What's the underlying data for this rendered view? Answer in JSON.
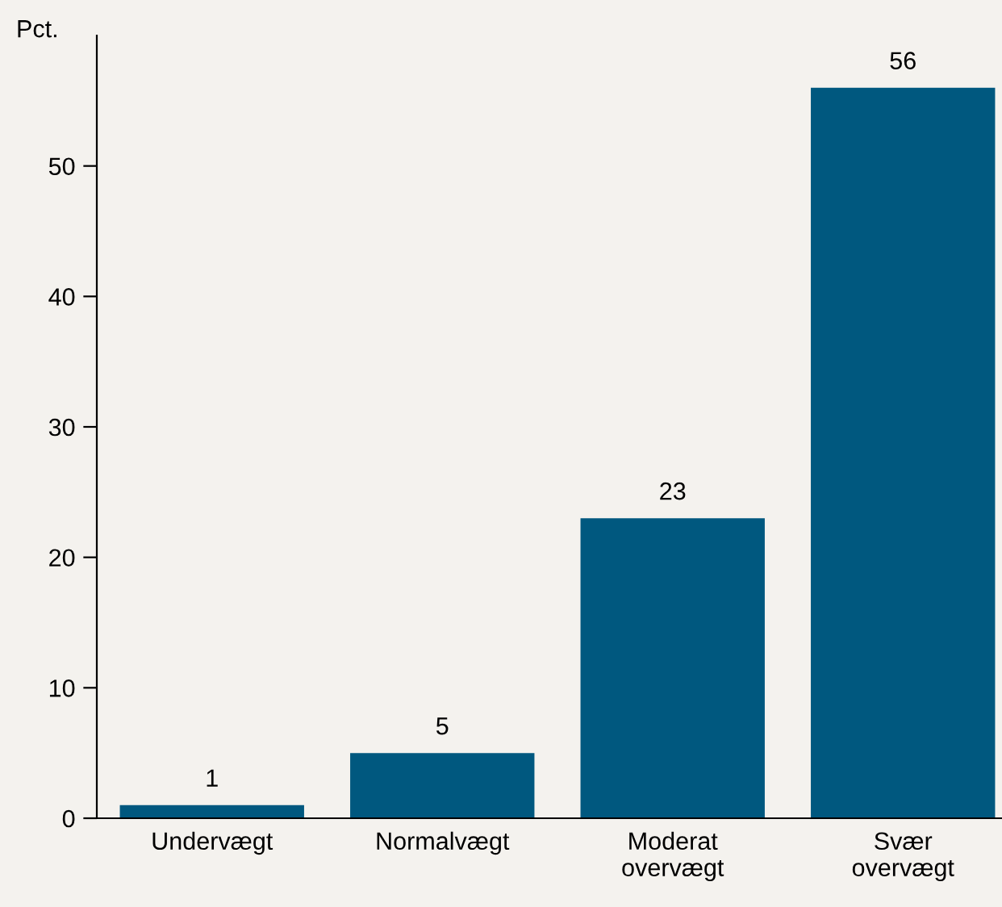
{
  "chart_data": {
    "type": "bar",
    "ylabel": "Pct.",
    "categories": [
      "Undervægt",
      "Normalvægt",
      "Moderat\novervægt",
      "Svær\novervægt"
    ],
    "values": [
      1,
      5,
      23,
      56
    ],
    "color": "#00587f",
    "ylim": [
      0,
      60
    ],
    "yticks": [
      0,
      10,
      20,
      30,
      40,
      50
    ],
    "grid": false,
    "data_labels": true
  }
}
